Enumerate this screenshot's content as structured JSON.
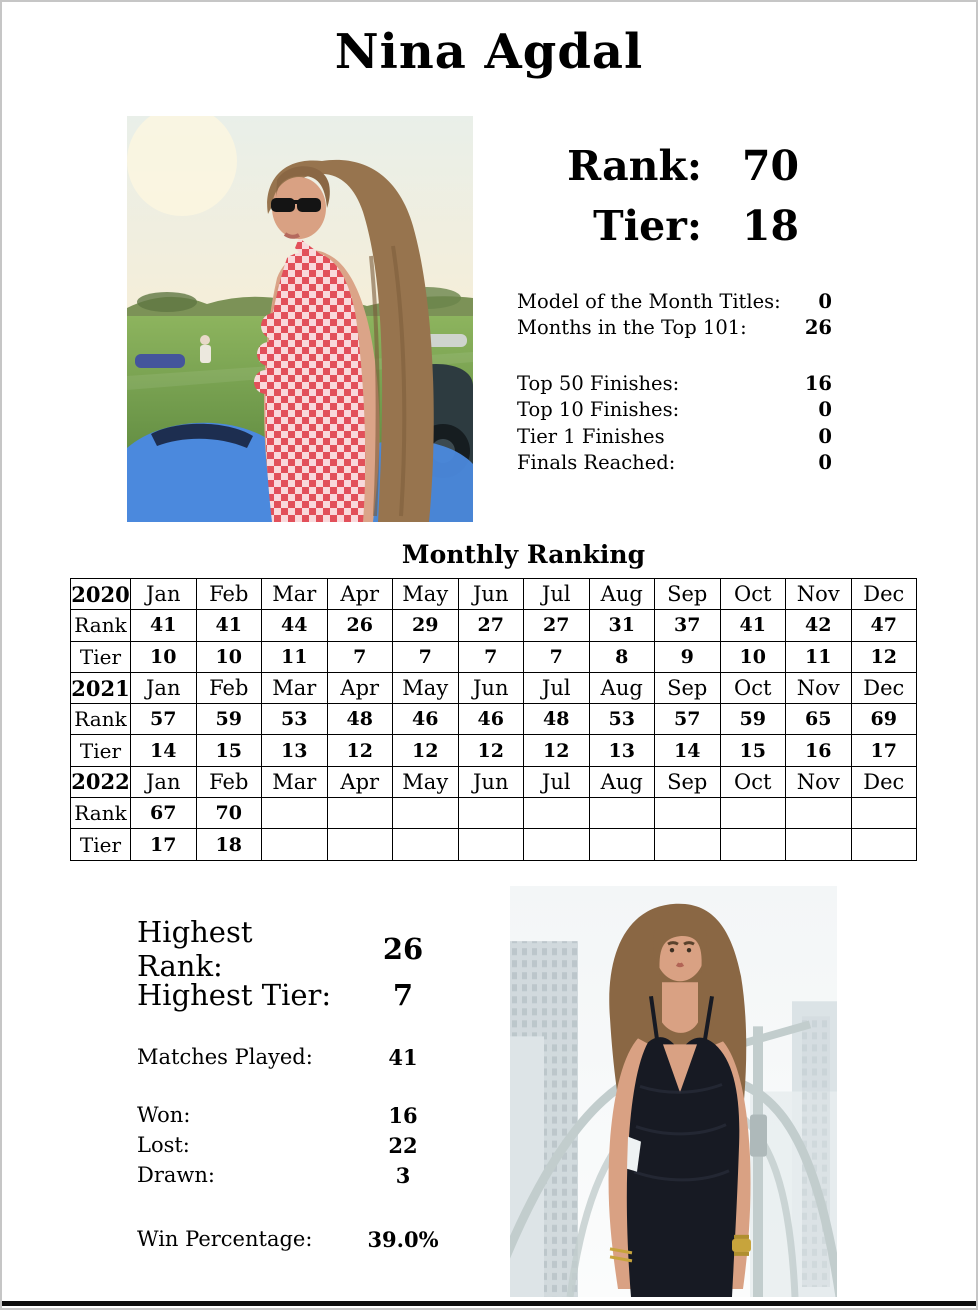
{
  "page": {
    "title": "Nina Agdal"
  },
  "summary": {
    "rank_label": "Rank:",
    "rank_value": "70",
    "tier_label": "Tier:",
    "tier_value": "18",
    "stats_top": [
      {
        "label": "Model of the Month Titles:",
        "value": "0"
      },
      {
        "label": "Months in the Top 101:",
        "value": "26"
      }
    ],
    "stats_bottom": [
      {
        "label": "Top 50 Finishes:",
        "value": "16"
      },
      {
        "label": "Top 10 Finishes:",
        "value": "0"
      },
      {
        "label": "Tier 1 Finishes",
        "value": "0"
      },
      {
        "label": "Finals Reached:",
        "value": "0"
      }
    ]
  },
  "monthly_ranking": {
    "title": "Monthly Ranking",
    "rank_label": "Rank",
    "tier_label": "Tier",
    "months": [
      "Jan",
      "Feb",
      "Mar",
      "Apr",
      "May",
      "Jun",
      "Jul",
      "Aug",
      "Sep",
      "Oct",
      "Nov",
      "Dec"
    ],
    "years": [
      {
        "year": "2020",
        "rank": [
          "41",
          "41",
          "44",
          "26",
          "29",
          "27",
          "27",
          "31",
          "37",
          "41",
          "42",
          "47"
        ],
        "tier": [
          "10",
          "10",
          "11",
          "7",
          "7",
          "7",
          "7",
          "8",
          "9",
          "10",
          "11",
          "12"
        ]
      },
      {
        "year": "2021",
        "rank": [
          "57",
          "59",
          "53",
          "48",
          "46",
          "46",
          "48",
          "53",
          "57",
          "59",
          "65",
          "69"
        ],
        "tier": [
          "14",
          "15",
          "13",
          "12",
          "12",
          "12",
          "12",
          "13",
          "14",
          "15",
          "16",
          "17"
        ]
      },
      {
        "year": "2022",
        "rank": [
          "67",
          "70",
          "",
          "",
          "",
          "",
          "",
          "",
          "",
          "",
          "",
          ""
        ],
        "tier": [
          "17",
          "18",
          "",
          "",
          "",
          "",
          "",
          "",
          "",
          "",
          "",
          ""
        ]
      }
    ]
  },
  "career": {
    "highest_rank_label": "Highest Rank:",
    "highest_rank_value": "26",
    "highest_tier_label": "Highest Tier:",
    "highest_tier_value": "7",
    "matches_played_label": "Matches Played:",
    "matches_played_value": "41",
    "won_label": "Won:",
    "won_value": "16",
    "lost_label": "Lost:",
    "lost_value": "22",
    "drawn_label": "Drawn:",
    "drawn_value": "3",
    "win_pct_label": "Win Percentage:",
    "win_pct_value": "39.0%"
  },
  "photos": {
    "left": "Nina Agdal in red gingham dress with sunglasses at a golf course with cars",
    "right": "Nina Agdal in black dress on a rooftop with city skyline"
  },
  "colors": {
    "text": "#000000",
    "page_border": "#c6c6c6",
    "bottom_bar": "#0d0d0d",
    "gingham_red": "#e2505a",
    "dress_black": "#171a23"
  }
}
